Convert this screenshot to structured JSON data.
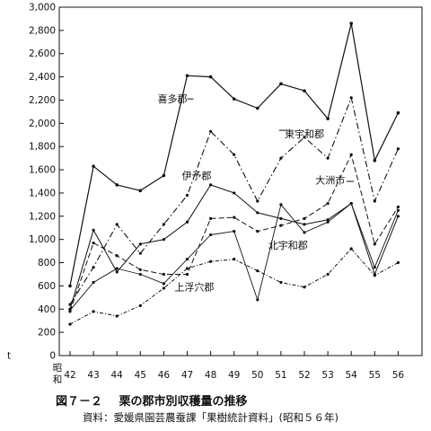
{
  "figure": {
    "number": "図７－２",
    "title": "栗の郡市別収穫量の推移",
    "source": "資料：愛媛県園芸農蚕課「果樹統計資料」(昭和５６年)"
  },
  "chart_data": {
    "type": "line",
    "y_unit": "t",
    "x_era_label": [
      "昭",
      "和"
    ],
    "categories": [
      "42",
      "43",
      "44",
      "45",
      "46",
      "47",
      "48",
      "49",
      "50",
      "51",
      "52",
      "53",
      "54",
      "55",
      "56"
    ],
    "ylim": [
      0,
      3000
    ],
    "y_ticks": [
      0,
      200,
      400,
      600,
      800,
      1000,
      1200,
      1400,
      1600,
      1800,
      2000,
      2200,
      2400,
      2600,
      2800,
      3000
    ],
    "y_tick_labels": [
      "0",
      "200",
      "400",
      "600",
      "800",
      "1,000",
      "1,200",
      "1,400",
      "1,600",
      "1,800",
      "2,000",
      "2,200",
      "2,400",
      "2,600",
      "2,800",
      "3,000"
    ],
    "grid": false,
    "series": [
      {
        "name": "喜多郡",
        "style": "solid",
        "values": [
          600,
          1630,
          1470,
          1420,
          1550,
          2410,
          2400,
          2210,
          2130,
          2340,
          2280,
          2040,
          2860,
          1680,
          2090
        ]
      },
      {
        "name": "東宇和郡",
        "style": "dashdot",
        "values": [
          440,
          760,
          1130,
          880,
          1130,
          1380,
          1930,
          1730,
          1330,
          1700,
          1880,
          1700,
          2220,
          1330,
          1780
        ]
      },
      {
        "name": "伊予郡",
        "style": "solid-dots",
        "values": [
          400,
          1080,
          720,
          960,
          1000,
          1150,
          1470,
          1400,
          1230,
          1180,
          1130,
          1170,
          1310,
          700,
          1200
        ]
      },
      {
        "name": "大洲市",
        "style": "dashed",
        "values": [
          380,
          970,
          860,
          740,
          700,
          700,
          1180,
          1190,
          1070,
          1120,
          1180,
          1310,
          1730,
          960,
          1280
        ]
      },
      {
        "name": "北宇和郡",
        "style": "solid-thin",
        "values": [
          390,
          630,
          750,
          700,
          620,
          830,
          1040,
          1070,
          480,
          1300,
          1060,
          1150,
          1310,
          760,
          1250
        ]
      },
      {
        "name": "上浮穴郡",
        "style": "dashdot-dense",
        "values": [
          270,
          380,
          340,
          430,
          580,
          750,
          810,
          830,
          730,
          630,
          590,
          700,
          920,
          690,
          800
        ]
      }
    ],
    "series_labels_pos": [
      {
        "x": "47",
        "y": 2180,
        "anchor": "end"
      },
      {
        "x": "52",
        "y": 1880,
        "anchor": "middle"
      },
      {
        "x": "47.4",
        "y": 1520,
        "anchor": "middle"
      },
      {
        "x": "53.1",
        "y": 1480,
        "anchor": "middle"
      },
      {
        "x": "51.3",
        "y": 920,
        "anchor": "middle"
      },
      {
        "x": "47.3",
        "y": 560,
        "anchor": "middle"
      }
    ]
  }
}
